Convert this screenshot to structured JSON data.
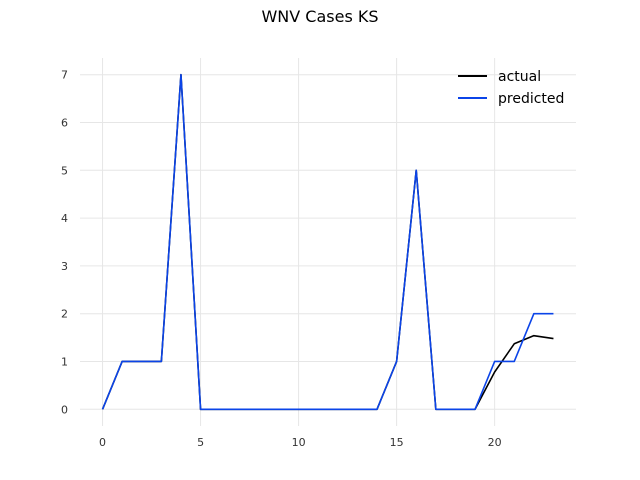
{
  "chart_data": {
    "type": "line",
    "title": "WNV Cases KS",
    "xlabel": "",
    "ylabel": "",
    "xlim": [
      -1.15,
      24.15
    ],
    "ylim": [
      -0.35,
      7.35
    ],
    "xticks": [
      0,
      5,
      10,
      15,
      20
    ],
    "yticks": [
      0,
      1,
      2,
      3,
      4,
      5,
      6,
      7
    ],
    "grid": true,
    "legend": "top-right",
    "x": [
      0,
      1,
      2,
      3,
      4,
      5,
      6,
      7,
      8,
      9,
      10,
      11,
      12,
      13,
      14,
      15,
      16,
      17,
      18,
      19,
      20,
      21,
      22,
      23
    ],
    "series": [
      {
        "name": "actual",
        "color": "#000000",
        "values": [
          0,
          1,
          1,
          1,
          7,
          0,
          0,
          0,
          0,
          0,
          0,
          0,
          0,
          0,
          0,
          1,
          5,
          0,
          0,
          0,
          0.78,
          1.37,
          1.54,
          1.48
        ]
      },
      {
        "name": "predicted",
        "color": "#0b44e8",
        "values": [
          0,
          1,
          1,
          1,
          7,
          0,
          0,
          0,
          0,
          0,
          0,
          0,
          0,
          0,
          0,
          1,
          5,
          0,
          0,
          0,
          1,
          1,
          2,
          2
        ]
      }
    ]
  }
}
